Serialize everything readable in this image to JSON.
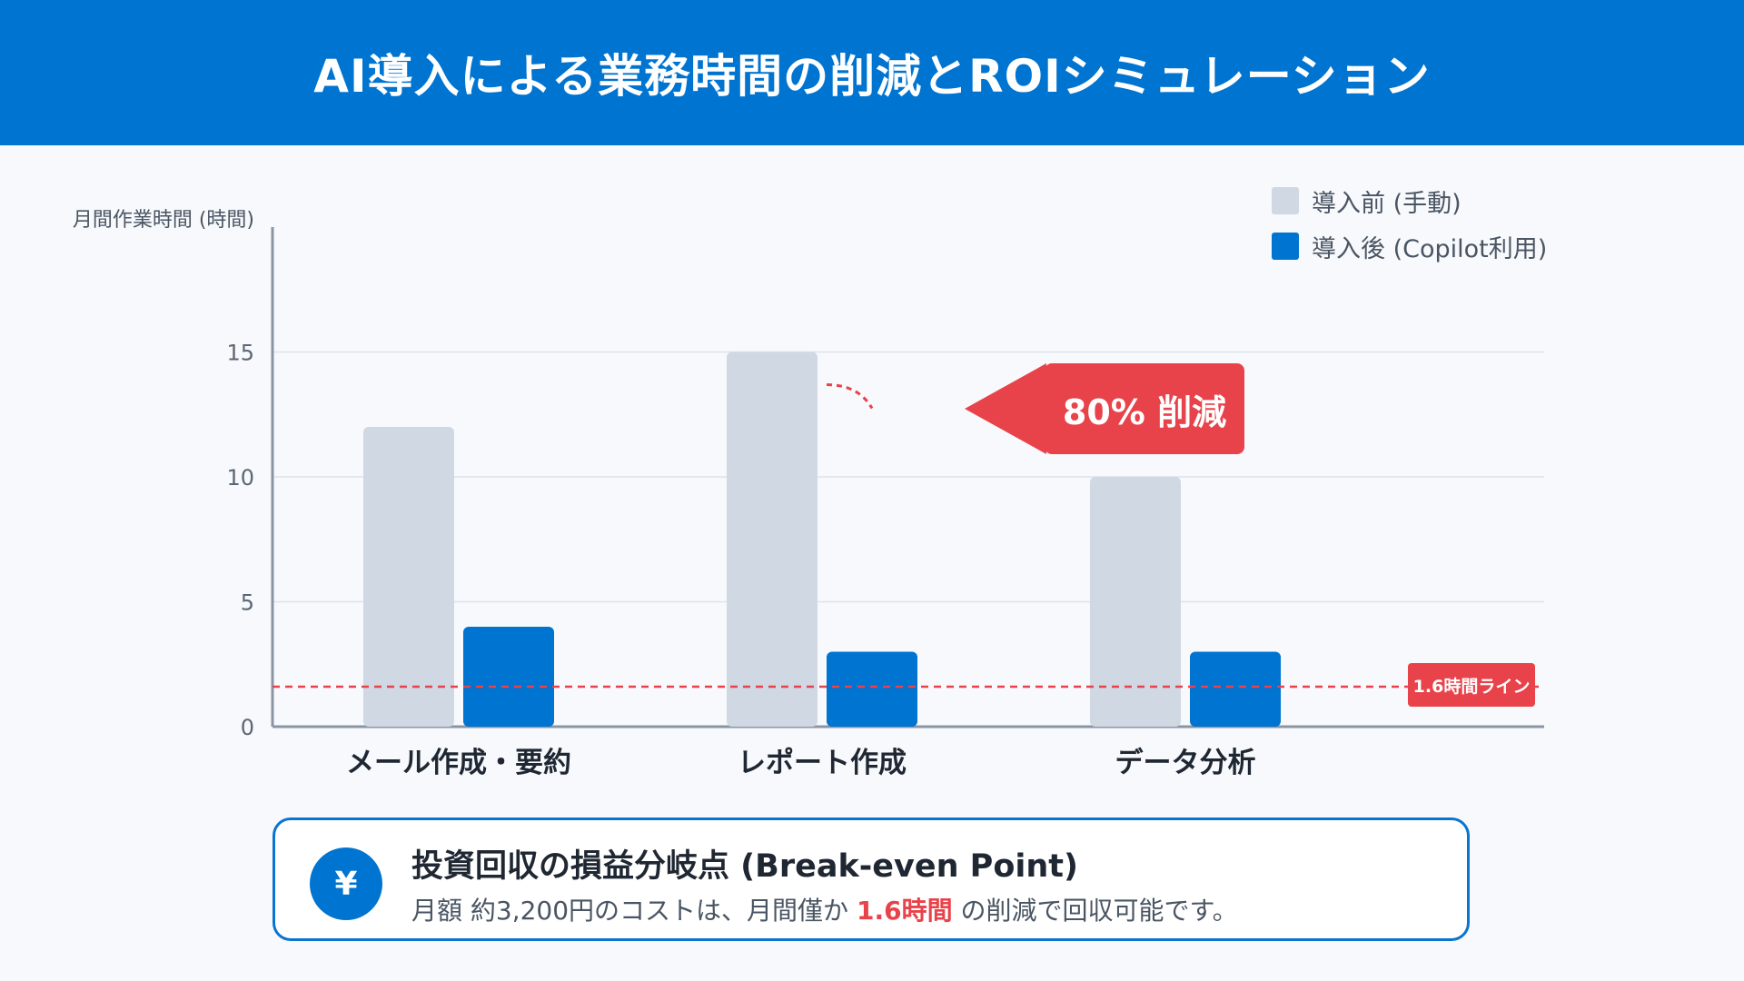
{
  "header": {
    "title": "AI導入による業務時間の削減とROIシミュレーション"
  },
  "chart_data": {
    "type": "bar",
    "ylabel": "月間作業時間 (時間)",
    "ylim": [
      0,
      20
    ],
    "yticks": [
      0,
      5,
      10,
      15
    ],
    "categories": [
      "メール作成・要約",
      "レポート作成",
      "データ分析"
    ],
    "series": [
      {
        "name": "導入前 (手動)",
        "values": [
          12,
          15,
          10
        ],
        "color": "#cfd8e3"
      },
      {
        "name": "導入後 (Copilot利用)",
        "values": [
          4,
          3,
          3
        ],
        "color": "#0074d1"
      }
    ],
    "threshold": {
      "value": 1.6,
      "label": "1.6時間ライン",
      "color": "#e8434a"
    },
    "annotation": {
      "text": "80% 削減",
      "category": "レポート作成"
    },
    "legend_position": "top-right",
    "grid": true
  },
  "info": {
    "icon": "yen-icon",
    "icon_glyph": "¥",
    "title": "投資回収の損益分岐点 (Break-even Point)",
    "text_before": "月額 約3,200円のコストは、月間僅か ",
    "text_highlight": "1.6時間",
    "text_after": " の削減で回収可能です。"
  }
}
